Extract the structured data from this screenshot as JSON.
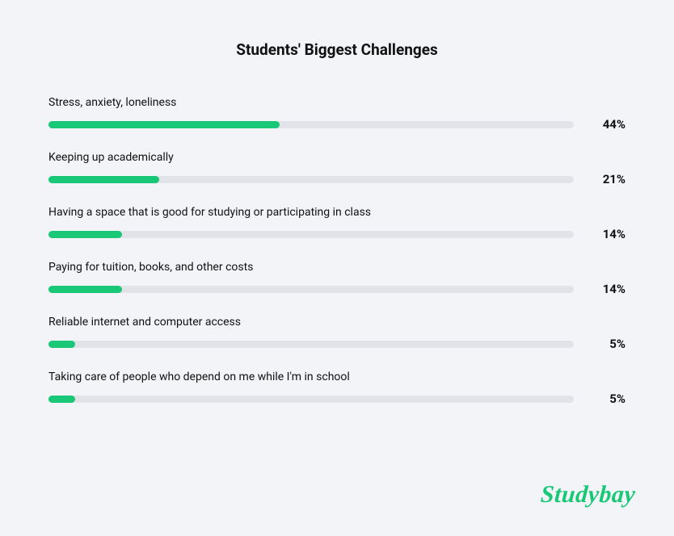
{
  "title": "Students' Biggest Challenges",
  "brand": "Studybay",
  "brand_color": "#18c876",
  "track_color": "#e2e3e8",
  "background_color": "#f3f4f8",
  "text_color": "#111111",
  "items": [
    {
      "label": "Stress, anxiety, loneliness",
      "value": 44
    },
    {
      "label": "Keeping up academically",
      "value": 21
    },
    {
      "label": "Having a space that is good for studying or participating in class",
      "value": 14
    },
    {
      "label": "Paying for tuition, books, and other costs",
      "value": 14
    },
    {
      "label": "Reliable internet and computer access",
      "value": 5
    },
    {
      "label": "Taking care of people who depend on me while I'm in school",
      "value": 5
    }
  ]
}
